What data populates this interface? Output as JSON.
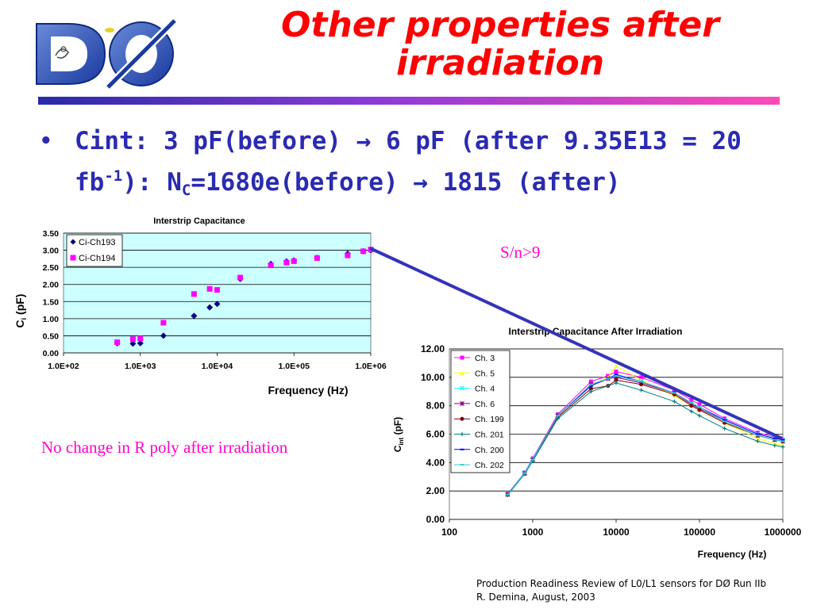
{
  "slide": {
    "title": "Other properties after irradiation",
    "bullet": {
      "symbol": "•",
      "t1": "Cint: 3 pF(before) ",
      "arrow": "→",
      "t2": " 6 pF (after 9.35E13 = 20 fb",
      "sup": "-1",
      "t3": "): N",
      "sub": "C",
      "t4": "=1680e(before) ",
      "t5": " 1815 (after)"
    },
    "note_sn": "S/n>9",
    "note_poly": "No change in R poly after irradiation",
    "footer_line1": "Production Readiness Review of L0/L1 sensors for DØ Run IIb",
    "footer_line2": "R. Demina, August, 2003",
    "logo": {
      "icon": "d0-experiment-logo",
      "text": "DØ"
    },
    "colors": {
      "title": "#ff0000",
      "bullet": "#2a2ab2",
      "note": "#ff00cc",
      "connector": "#3333bb"
    }
  },
  "chart_data": [
    {
      "type": "scatter",
      "title": "Interstrip Capacitance",
      "xlabel": "Frequency (Hz)",
      "ylabel_main": "C",
      "ylabel_sub": "i",
      "ylabel_tail": " (pF)",
      "xscale": "log",
      "xlim": [
        100,
        1000000
      ],
      "ylim": [
        0,
        3.5
      ],
      "xticks": [
        "1.0E+02",
        "1.0E+03",
        "1.0E+04",
        "1.0E+05",
        "1.0E+06"
      ],
      "yticks": [
        "0.00",
        "0.50",
        "1.00",
        "1.50",
        "2.00",
        "2.50",
        "3.00",
        "3.50"
      ],
      "grid": true,
      "plot_background": "#ccffff",
      "legend_position": "top-left",
      "series": [
        {
          "name": "Ci-Ch193",
          "marker": "diamond",
          "color": "#000080",
          "x": [
            500,
            800,
            1000,
            2000,
            5000,
            8000,
            10000,
            20000,
            50000,
            80000,
            100000,
            200000,
            500000,
            800000,
            1000000
          ],
          "y": [
            0.28,
            0.27,
            0.28,
            0.5,
            1.08,
            1.33,
            1.43,
            2.16,
            2.6,
            2.67,
            2.7,
            2.78,
            2.9,
            2.97,
            3.0
          ]
        },
        {
          "name": "Ci-Ch194",
          "marker": "square",
          "color": "#ff00ff",
          "x": [
            500,
            800,
            1000,
            2000,
            5000,
            8000,
            10000,
            20000,
            50000,
            80000,
            100000,
            200000,
            500000,
            800000,
            1000000
          ],
          "y": [
            0.31,
            0.4,
            0.42,
            0.88,
            1.72,
            1.87,
            1.84,
            2.2,
            2.56,
            2.64,
            2.68,
            2.77,
            2.85,
            2.97,
            3.02
          ]
        }
      ]
    },
    {
      "type": "line",
      "title": "Interstrip Capacitance After Irradiation",
      "xlabel": "Frequency (Hz)",
      "ylabel_main": "C",
      "ylabel_sub": "int",
      "ylabel_tail": " (pF)",
      "xscale": "log",
      "xlim": [
        100,
        1000000
      ],
      "ylim": [
        0,
        12
      ],
      "xticks": [
        "100",
        "1000",
        "10000",
        "100000",
        "1000000"
      ],
      "yticks": [
        "0.00",
        "2.00",
        "4.00",
        "6.00",
        "8.00",
        "10.00",
        "12.00"
      ],
      "grid": true,
      "legend_position": "top-left",
      "x": [
        500,
        800,
        1000,
        2000,
        5000,
        8000,
        10000,
        20000,
        50000,
        80000,
        100000,
        200000,
        500000,
        800000,
        1000000
      ],
      "series": [
        {
          "name": "Ch. 3",
          "marker": "square",
          "color": "#ff00ff",
          "values": [
            1.8,
            3.3,
            4.3,
            7.4,
            9.7,
            10.1,
            10.4,
            10.0,
            9.1,
            8.4,
            8.1,
            7.1,
            6.1,
            5.8,
            5.6
          ]
        },
        {
          "name": "Ch. 5",
          "marker": "triangle",
          "color": "#ffff00",
          "values": [
            1.75,
            3.25,
            4.2,
            7.3,
            9.4,
            10.0,
            10.8,
            9.8,
            8.7,
            8.0,
            7.7,
            6.8,
            5.7,
            5.3,
            5.2
          ]
        },
        {
          "name": "Ch. 4",
          "marker": "x",
          "color": "#00ffff",
          "values": [
            1.75,
            3.3,
            4.25,
            7.3,
            9.5,
            9.9,
            10.1,
            9.7,
            8.9,
            8.2,
            7.9,
            7.0,
            6.0,
            5.7,
            5.6
          ]
        },
        {
          "name": "Ch. 6",
          "marker": "star",
          "color": "#800080",
          "values": [
            1.75,
            3.25,
            4.2,
            7.3,
            9.5,
            9.9,
            10.0,
            9.6,
            8.9,
            8.1,
            7.8,
            6.9,
            5.9,
            5.6,
            5.5
          ]
        },
        {
          "name": "Ch. 199",
          "marker": "circle",
          "color": "#800000",
          "values": [
            1.75,
            3.2,
            4.15,
            7.2,
            9.2,
            9.4,
            9.8,
            9.5,
            8.8,
            8.0,
            7.7,
            6.8,
            5.9,
            5.6,
            5.5
          ]
        },
        {
          "name": "Ch. 201",
          "marker": "plus",
          "color": "#008080",
          "values": [
            1.7,
            3.2,
            4.1,
            7.1,
            9.0,
            9.4,
            9.6,
            9.1,
            8.3,
            7.6,
            7.3,
            6.4,
            5.5,
            5.2,
            5.1
          ]
        },
        {
          "name": "Ch. 200",
          "marker": "dash",
          "color": "#0000ff",
          "values": [
            1.75,
            3.25,
            4.2,
            7.3,
            9.4,
            9.9,
            10.2,
            9.7,
            8.9,
            8.2,
            7.9,
            7.0,
            6.0,
            5.7,
            5.6
          ]
        },
        {
          "name": "Ch. 202",
          "marker": "dash",
          "color": "#33cccc",
          "values": [
            1.75,
            3.25,
            4.2,
            7.3,
            9.5,
            9.9,
            10.1,
            9.7,
            8.9,
            8.2,
            7.9,
            6.9,
            5.9,
            5.6,
            5.5
          ]
        }
      ]
    }
  ]
}
